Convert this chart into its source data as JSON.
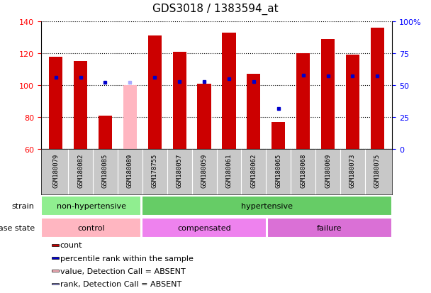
{
  "title": "GDS3018 / 1383594_at",
  "samples": [
    "GSM180079",
    "GSM180082",
    "GSM180085",
    "GSM180089",
    "GSM178755",
    "GSM180057",
    "GSM180059",
    "GSM180061",
    "GSM180062",
    "GSM180065",
    "GSM180068",
    "GSM180069",
    "GSM180073",
    "GSM180075"
  ],
  "counts": [
    118,
    115,
    81,
    100,
    131,
    121,
    101,
    133,
    107,
    77,
    120,
    129,
    119,
    136
  ],
  "percentile_ranks": [
    56,
    56,
    52,
    52,
    56,
    53,
    53,
    55,
    53,
    32,
    58,
    57,
    57,
    57
  ],
  "absent": [
    false,
    false,
    false,
    true,
    false,
    false,
    false,
    false,
    false,
    false,
    false,
    false,
    false,
    false
  ],
  "ymin": 60,
  "ymax": 140,
  "yticks_left": [
    60,
    80,
    100,
    120,
    140
  ],
  "yticks_right": [
    0,
    25,
    50,
    75,
    100
  ],
  "bar_color": "#CC0000",
  "bar_color_absent": "#FFB6C1",
  "dot_color": "#0000CC",
  "dot_color_absent": "#AAAAFF",
  "strain_groups": [
    {
      "label": "non-hypertensive",
      "start": 0,
      "end": 4,
      "color": "#90EE90"
    },
    {
      "label": "hypertensive",
      "start": 4,
      "end": 14,
      "color": "#66CC66"
    }
  ],
  "disease_groups": [
    {
      "label": "control",
      "start": 0,
      "end": 4,
      "color": "#FFB6C1"
    },
    {
      "label": "compensated",
      "start": 4,
      "end": 9,
      "color": "#EE82EE"
    },
    {
      "label": "failure",
      "start": 9,
      "end": 14,
      "color": "#DA70D6"
    }
  ],
  "legend_items": [
    {
      "color": "#CC0000",
      "label": "count"
    },
    {
      "color": "#0000CC",
      "label": "percentile rank within the sample"
    },
    {
      "color": "#FFB6C1",
      "label": "value, Detection Call = ABSENT"
    },
    {
      "color": "#AAAAFF",
      "label": "rank, Detection Call = ABSENT"
    }
  ]
}
